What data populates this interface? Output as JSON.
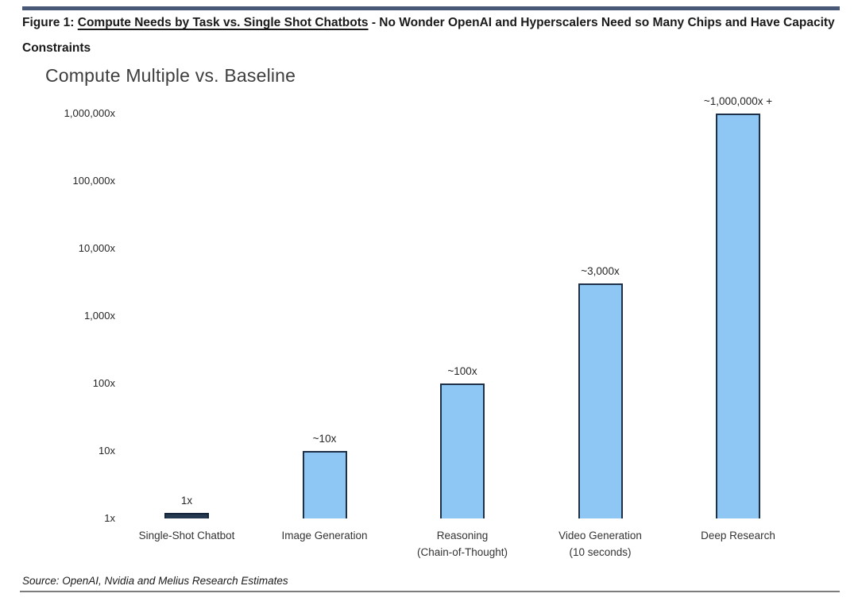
{
  "header": {
    "figure_prefix": "Figure 1: ",
    "figure_title_underlined": "Compute Needs by Task vs. Single Shot Chatbots",
    "figure_suffix": " - No Wonder OpenAI and Hyperscalers Need so Many Chips and Have Capacity Constraints"
  },
  "chart_data": {
    "type": "bar",
    "title": "Compute Multiple vs. Baseline",
    "xlabel": "",
    "ylabel": "",
    "y_scale": "log10",
    "ylim": [
      1,
      1000000
    ],
    "grid": false,
    "legend": false,
    "y_ticks": [
      {
        "label": "1,000,000x",
        "exp": 6
      },
      {
        "label": "100,000x",
        "exp": 5
      },
      {
        "label": "10,000x",
        "exp": 4
      },
      {
        "label": "1,000x",
        "exp": 3
      },
      {
        "label": "100x",
        "exp": 2
      },
      {
        "label": "10x",
        "exp": 1
      },
      {
        "label": "1x",
        "exp": 0
      }
    ],
    "bars": [
      {
        "category": "Single-Shot Chatbot",
        "category_line2": "",
        "value": 1,
        "value_label": "1x",
        "fill": "#24384f",
        "border": "#16263a"
      },
      {
        "category": "Image Generation",
        "category_line2": "",
        "value": 10,
        "value_label": "~10x",
        "fill": "#8fc7f4",
        "border": "#1e3048"
      },
      {
        "category": "Reasoning",
        "category_line2": "(Chain-of-Thought)",
        "value": 100,
        "value_label": "~100x",
        "fill": "#8fc7f4",
        "border": "#1e3048"
      },
      {
        "category": "Video Generation",
        "category_line2": "(10 seconds)",
        "value": 3000,
        "value_label": "~3,000x",
        "fill": "#8fc7f4",
        "border": "#1e3048"
      },
      {
        "category": "Deep Research",
        "category_line2": "",
        "value": 1000000,
        "value_label": "~1,000,000x +",
        "fill": "#8fc7f4",
        "border": "#1e3048"
      }
    ]
  },
  "source": "Source: OpenAI, Nvidia and Melius Research Estimates",
  "colors": {
    "top_rule": "#4a5878",
    "bottom_rule": "#7d7d7d"
  }
}
